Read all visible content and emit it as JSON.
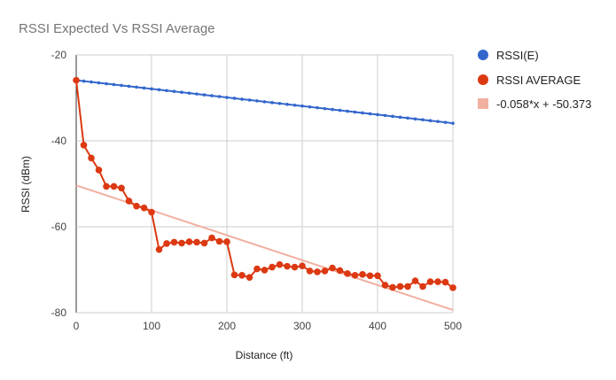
{
  "chart_data": {
    "type": "line",
    "title": "RSSI Expected Vs RSSI Average",
    "xlabel": "Distance (ft)",
    "ylabel": "RSSI (dBm)",
    "xlim": [
      0,
      500
    ],
    "ylim": [
      -80,
      -20
    ],
    "xticks": [
      0,
      100,
      200,
      300,
      400,
      500
    ],
    "yticks": [
      -20,
      -40,
      -60,
      -80
    ],
    "grid": true,
    "legend_position": "right",
    "x": [
      0,
      10,
      20,
      30,
      40,
      50,
      60,
      70,
      80,
      90,
      100,
      110,
      120,
      130,
      140,
      150,
      160,
      170,
      180,
      190,
      200,
      210,
      220,
      230,
      240,
      250,
      260,
      270,
      280,
      290,
      300,
      310,
      320,
      330,
      340,
      350,
      360,
      370,
      380,
      390,
      400,
      410,
      420,
      430,
      440,
      450,
      460,
      470,
      480,
      490,
      500
    ],
    "series": [
      {
        "name": "RSSI(E)",
        "color": "#3366cc",
        "marker": "small-dot",
        "values": [
          -25.9,
          -26.1,
          -26.3,
          -26.5,
          -26.7,
          -26.9,
          -27.1,
          -27.3,
          -27.5,
          -27.7,
          -27.9,
          -28.1,
          -28.3,
          -28.5,
          -28.7,
          -28.9,
          -29.1,
          -29.3,
          -29.5,
          -29.7,
          -29.9,
          -30.1,
          -30.3,
          -30.5,
          -30.7,
          -30.9,
          -31.1,
          -31.3,
          -31.5,
          -31.7,
          -31.9,
          -32.1,
          -32.3,
          -32.5,
          -32.7,
          -32.9,
          -33.1,
          -33.3,
          -33.5,
          -33.7,
          -33.9,
          -34.1,
          -34.3,
          -34.5,
          -34.7,
          -34.9,
          -35.1,
          -35.3,
          -35.5,
          -35.7,
          -35.9
        ]
      },
      {
        "name": "RSSI AVERAGE",
        "color": "#dc3912",
        "marker": "dot",
        "values": [
          -25.9,
          -41,
          -44,
          -46.8,
          -50.6,
          -50.6,
          -51,
          -54,
          -55.2,
          -55.6,
          -56.6,
          -65.3,
          -63.9,
          -63.6,
          -63.8,
          -63.5,
          -63.6,
          -63.8,
          -62.6,
          -63.4,
          -63.5,
          -71.2,
          -71.3,
          -71.8,
          -69.8,
          -70.1,
          -69.4,
          -68.8,
          -69.2,
          -69.4,
          -69.1,
          -70.3,
          -70.5,
          -70.3,
          -69.6,
          -70.2,
          -70.9,
          -71.3,
          -71.1,
          -71.4,
          -71.4,
          -73.6,
          -74.1,
          -73.9,
          -73.9,
          -72.6,
          -73.9,
          -72.8,
          -72.8,
          -72.9,
          -74.2
        ]
      },
      {
        "name": "-0.058*x + -50.373",
        "color": "#f1b0a0",
        "type": "trendline",
        "slope": -0.058,
        "intercept": -50.373
      }
    ]
  }
}
